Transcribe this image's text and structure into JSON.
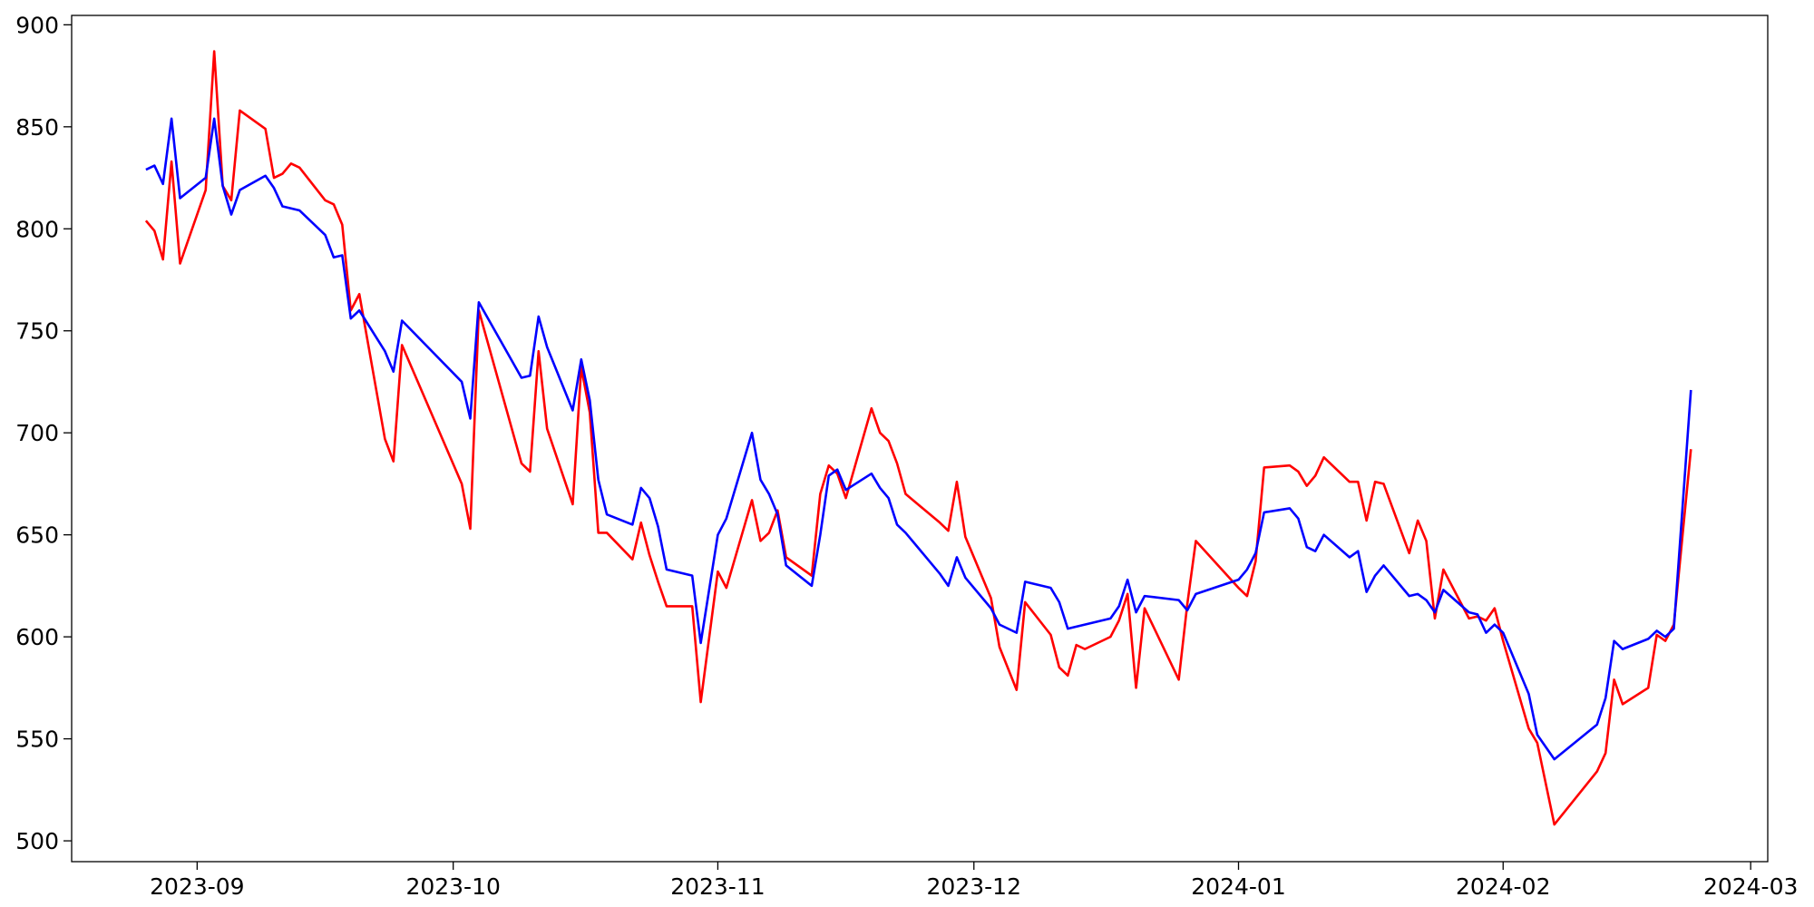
{
  "chart_data": {
    "type": "line",
    "x": [
      19595,
      19596,
      19597,
      19598,
      19599,
      19602,
      19603,
      19604,
      19605,
      19606,
      19609,
      19610,
      19611,
      19612,
      19613,
      19616,
      19617,
      19618,
      19619,
      19620,
      19623,
      19624,
      19625,
      19632,
      19633,
      19634,
      19639,
      19640,
      19641,
      19642,
      19645,
      19646,
      19647,
      19648,
      19649,
      19652,
      19653,
      19654,
      19655,
      19656,
      19659,
      19660,
      19662,
      19663,
      19666,
      19667,
      19668,
      19669,
      19670,
      19673,
      19674,
      19675,
      19676,
      19677,
      19680,
      19681,
      19682,
      19683,
      19684,
      19688,
      19689,
      19690,
      19691,
      19694,
      19695,
      19697,
      19698,
      19701,
      19702,
      19703,
      19704,
      19705,
      19708,
      19709,
      19710,
      19711,
      19712,
      19716,
      19717,
      19718,
      19723,
      19724,
      19725,
      19726,
      19729,
      19730,
      19731,
      19732,
      19733,
      19736,
      19737,
      19738,
      19739,
      19740,
      19743,
      19744,
      19745,
      19746,
      19747,
      19750,
      19751,
      19752,
      19753,
      19754,
      19757,
      19758,
      19760,
      19765,
      19766,
      19767,
      19768,
      19771,
      19772,
      19773,
      19774,
      19776
    ],
    "series": [
      {
        "color": "#ff0000",
        "values": [
          804,
          799,
          785,
          833,
          783,
          819,
          887,
          821,
          814,
          858,
          849,
          825,
          827,
          832,
          830,
          814,
          812,
          802,
          760,
          768,
          697,
          686,
          743,
          675,
          653,
          760,
          685,
          681,
          740,
          702,
          665,
          732,
          710,
          651,
          651,
          638,
          656,
          640,
          627,
          615,
          615,
          568,
          632,
          624,
          667,
          647,
          651,
          662,
          639,
          630,
          670,
          684,
          680,
          668,
          712,
          700,
          696,
          685,
          670,
          656,
          652,
          676,
          649,
          619,
          595,
          574,
          617,
          601,
          585,
          581,
          596,
          594,
          600,
          608,
          621,
          575,
          614,
          579,
          616,
          647,
          624,
          620,
          637,
          683,
          684,
          681,
          674,
          679,
          688,
          676,
          676,
          657,
          676,
          675,
          641,
          657,
          647,
          609,
          633,
          609,
          610,
          608,
          614,
          598,
          555,
          548,
          508,
          534,
          543,
          579,
          567,
          575,
          601,
          598,
          606,
          692
        ]
      },
      {
        "color": "#0000ff",
        "values": [
          829,
          831,
          822,
          854,
          815,
          825,
          854,
          821,
          807,
          819,
          826,
          820,
          811,
          810,
          809,
          797,
          786,
          787,
          756,
          760,
          740,
          730,
          755,
          725,
          707,
          764,
          727,
          728,
          757,
          742,
          711,
          736,
          716,
          677,
          660,
          655,
          673,
          668,
          654,
          633,
          630,
          597,
          650,
          658,
          700,
          677,
          670,
          660,
          635,
          625,
          650,
          679,
          682,
          672,
          680,
          673,
          668,
          655,
          651,
          631,
          625,
          639,
          629,
          614,
          606,
          602,
          627,
          624,
          617,
          604,
          605,
          606,
          609,
          615,
          628,
          612,
          620,
          618,
          613,
          621,
          628,
          633,
          641,
          661,
          663,
          658,
          644,
          642,
          650,
          639,
          642,
          622,
          630,
          635,
          620,
          621,
          618,
          612,
          623,
          612,
          611,
          602,
          606,
          602,
          572,
          552,
          540,
          557,
          570,
          598,
          594,
          599,
          603,
          600,
          604,
          721
        ]
      }
    ],
    "xlim": [
      19586.3,
      19785.0
    ],
    "xticks": [
      {
        "value": 19601,
        "label": "2023-09"
      },
      {
        "value": 19631,
        "label": "2023-10"
      },
      {
        "value": 19662,
        "label": "2023-11"
      },
      {
        "value": 19692,
        "label": "2023-12"
      },
      {
        "value": 19723,
        "label": "2024-01"
      },
      {
        "value": 19754,
        "label": "2024-02"
      },
      {
        "value": 19783,
        "label": "2024-03"
      }
    ],
    "ylim": [
      489.8,
      904.6
    ],
    "yticks": [
      500,
      550,
      600,
      650,
      700,
      750,
      800,
      850,
      900
    ]
  }
}
